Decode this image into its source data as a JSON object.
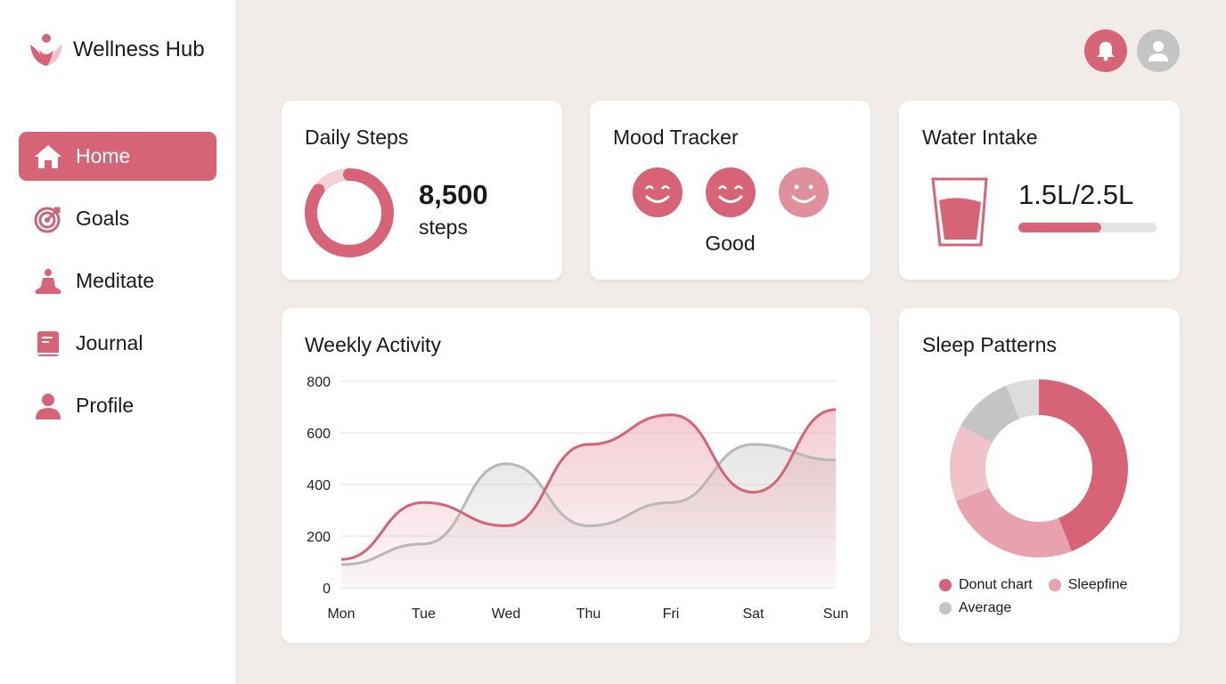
{
  "app": {
    "title": "Wellness Hub"
  },
  "sidebar": {
    "items": [
      {
        "label": "Home",
        "icon": "home-icon",
        "active": true
      },
      {
        "label": "Goals",
        "icon": "target-icon"
      },
      {
        "label": "Meditate",
        "icon": "meditate-icon"
      },
      {
        "label": "Journal",
        "icon": "book-icon"
      },
      {
        "label": "Profile",
        "icon": "person-icon"
      }
    ]
  },
  "header": {
    "notification_icon": "bell-icon",
    "avatar_icon": "user-icon"
  },
  "colors": {
    "accent": "#d76476",
    "accent_light": "#e8a2ad",
    "gray": "#c4c4c4",
    "background": "#f2ece8"
  },
  "steps": {
    "title": "Daily Steps",
    "value": "8,500",
    "unit": "steps",
    "progress": 0.85
  },
  "mood": {
    "title": "Mood Tracker",
    "label": "Good",
    "faces": [
      "grin-face-icon",
      "wink-face-icon",
      "smile-face-icon"
    ]
  },
  "water": {
    "title": "Water Intake",
    "value": "1.5L/2.5L",
    "progress": 0.6
  },
  "weekly": {
    "title": "Weekly Activity"
  },
  "sleep": {
    "title": "Sleep Patterns"
  },
  "chart_data": [
    {
      "type": "area",
      "title": "Weekly Activity",
      "categories": [
        "Mon",
        "Tue",
        "Wed",
        "Thu",
        "Fri",
        "Sat",
        "Sun"
      ],
      "ylim": [
        0,
        800
      ],
      "yticks": [
        0,
        200,
        400,
        600,
        800
      ],
      "grid": true,
      "series": [
        {
          "color": "#d76476",
          "values": [
            110,
            330,
            240,
            555,
            670,
            370,
            690
          ]
        },
        {
          "color": "#b8b8b8",
          "values": [
            90,
            170,
            480,
            240,
            330,
            555,
            495
          ]
        }
      ]
    },
    {
      "type": "pie",
      "title": "Sleep Patterns",
      "legend_position": "bottom",
      "legend": [
        {
          "name": "Donut chart",
          "color": "#d76476"
        },
        {
          "name": "Sleepfine",
          "color": "#e8a2ad"
        },
        {
          "name": "Average",
          "color": "#c4c4c4"
        }
      ],
      "slices": [
        {
          "value": 44,
          "color": "#d76476"
        },
        {
          "value": 25,
          "color": "#e8a2ad"
        },
        {
          "value": 14,
          "color": "#f0c3ca"
        },
        {
          "value": 11,
          "color": "#c4c4c4"
        },
        {
          "value": 6,
          "color": "#dcdcdc"
        }
      ]
    }
  ]
}
